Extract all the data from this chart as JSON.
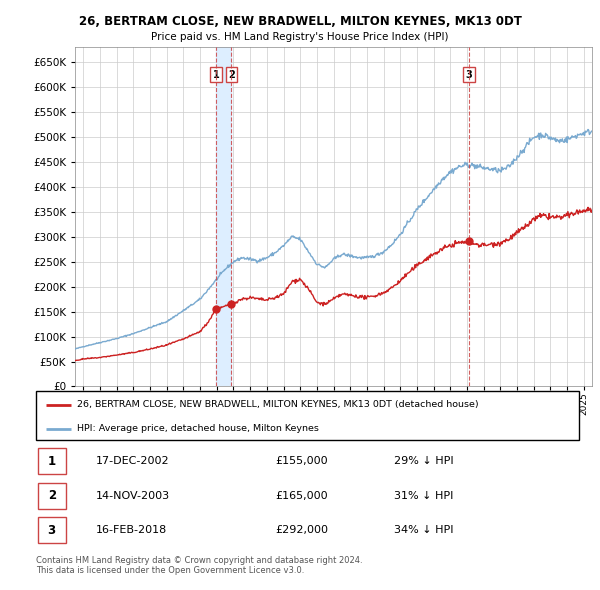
{
  "title": "26, BERTRAM CLOSE, NEW BRADWELL, MILTON KEYNES, MK13 0DT",
  "subtitle": "Price paid vs. HM Land Registry's House Price Index (HPI)",
  "ytick_values": [
    0,
    50000,
    100000,
    150000,
    200000,
    250000,
    300000,
    350000,
    400000,
    450000,
    500000,
    550000,
    600000,
    650000
  ],
  "xmin": 1994.5,
  "xmax": 2025.5,
  "ymin": 0,
  "ymax": 680000,
  "hpi_color": "#7aaad0",
  "price_color": "#cc2222",
  "vline_color": "#cc4444",
  "shade_color": "#ddeeff",
  "transactions": [
    {
      "num": 1,
      "date": "17-DEC-2002",
      "price": 155000,
      "pct": "29%",
      "x_year": 2002.96
    },
    {
      "num": 2,
      "date": "14-NOV-2003",
      "price": 165000,
      "pct": "31%",
      "x_year": 2003.88
    },
    {
      "num": 3,
      "date": "16-FEB-2018",
      "price": 292000,
      "pct": "34%",
      "x_year": 2018.12
    }
  ],
  "legend1": "26, BERTRAM CLOSE, NEW BRADWELL, MILTON KEYNES, MK13 0DT (detached house)",
  "legend2": "HPI: Average price, detached house, Milton Keynes",
  "footer1": "Contains HM Land Registry data © Crown copyright and database right 2024.",
  "footer2": "This data is licensed under the Open Government Licence v3.0."
}
